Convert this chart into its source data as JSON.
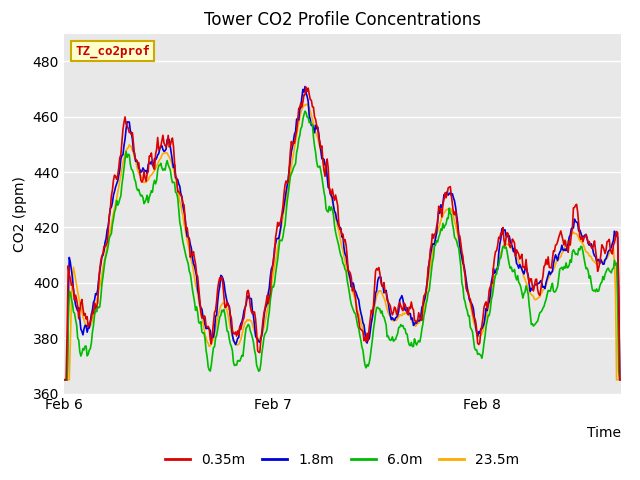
{
  "title": "Tower CO2 Profile Concentrations",
  "ylabel": "CO2 (ppm)",
  "xlabel": "Time",
  "annotation": "TZ_co2prof",
  "ylim": [
    360,
    490
  ],
  "yticks": [
    360,
    380,
    400,
    420,
    440,
    460,
    480
  ],
  "xtick_labels": [
    "Feb 6",
    "Feb 7",
    "Feb 8"
  ],
  "xtick_pos": [
    0.0,
    1.0,
    2.0
  ],
  "xlim": [
    0.0,
    2.667
  ],
  "legend_labels": [
    "0.35m",
    "1.8m",
    "6.0m",
    "23.5m"
  ],
  "colors": [
    "#dd0000",
    "#0000dd",
    "#00bb00",
    "#ffaa00"
  ],
  "bg_color": "#ffffff",
  "plot_bg_color": "#e8e8e8",
  "linewidth": 1.2,
  "annotation_bg": "#ffffcc",
  "annotation_fg": "#cc0000",
  "annotation_border": "#ccaa00"
}
